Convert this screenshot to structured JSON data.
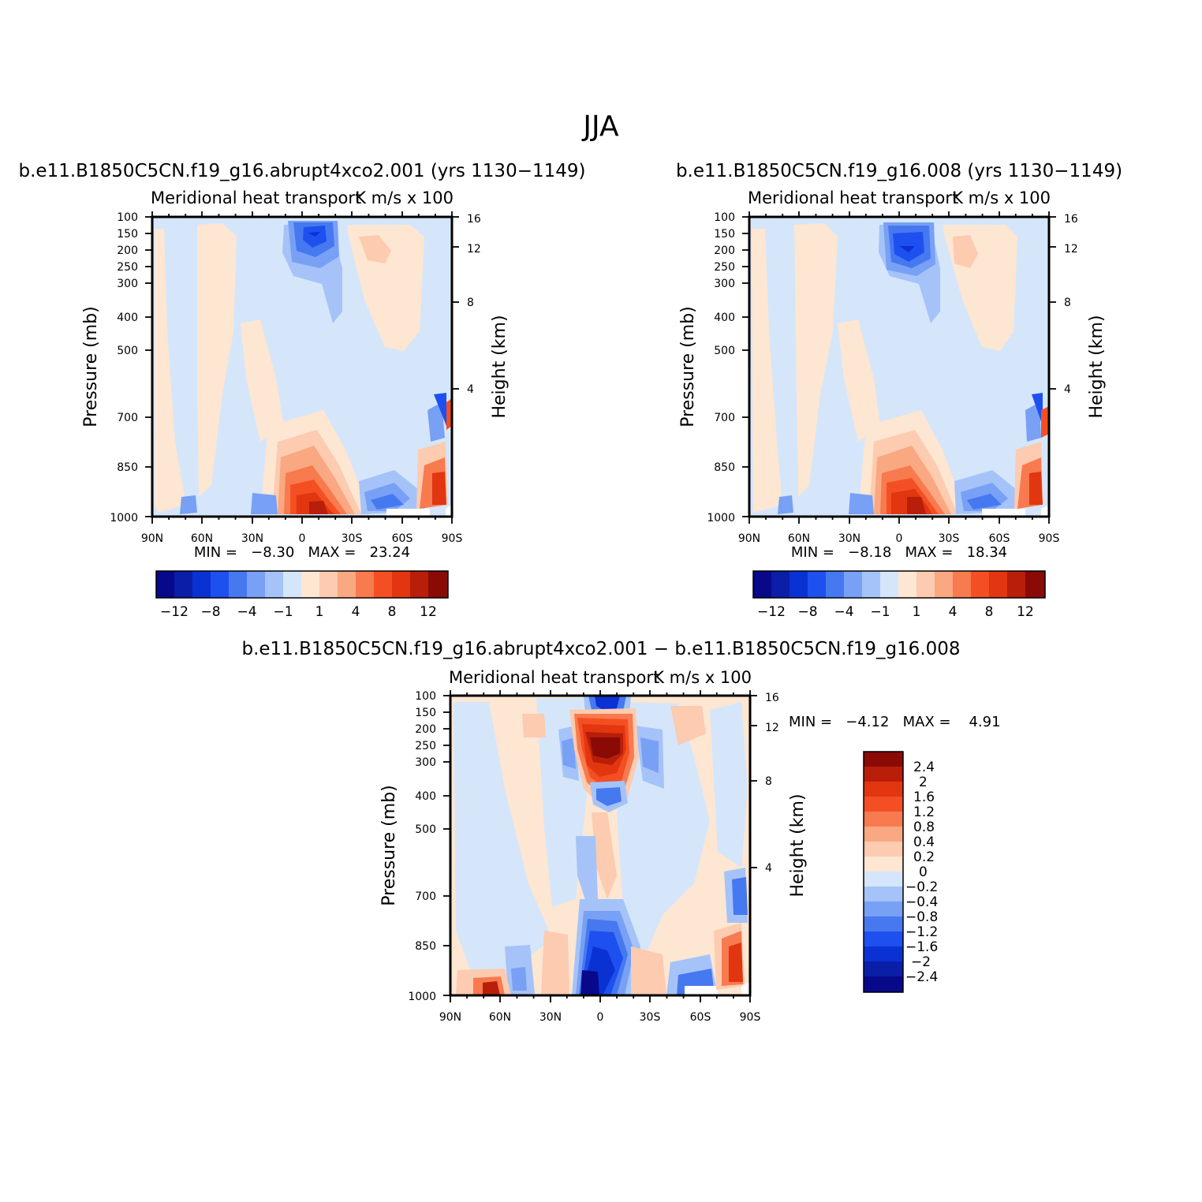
{
  "figure_title": "JJA",
  "colors": {
    "blues": [
      "#08088a",
      "#0a1ea8",
      "#0a32d2",
      "#1e50f0",
      "#4678f0",
      "#78a0f5",
      "#a5c3f8",
      "#d5e6fb"
    ],
    "reds": [
      "#fde6d2",
      "#fccbb0",
      "#f9a882",
      "#f87a4f",
      "#f44f23",
      "#e1360f",
      "#b81e0a",
      "#8a0a05"
    ]
  },
  "chart_data": [
    {
      "type": "contour",
      "title": "b.e11.B1850C5CN.f19_g16.abrupt4xco2.001 (yrs 1130−1149)",
      "left_subtitle": "Meridional heat transport",
      "right_subtitle": "K m/s x 100",
      "ylabel": "Pressure (mb)",
      "ylabel_right": "Height (km)",
      "x_ticks": [
        "90N",
        "60N",
        "30N",
        "0",
        "30S",
        "60S",
        "90S"
      ],
      "x_range": [
        90,
        -90
      ],
      "y_ticks": [
        "100",
        "150",
        "200",
        "250",
        "300",
        "400",
        "500",
        "700",
        "850",
        "1000"
      ],
      "y_right_ticks": [
        "16",
        "12",
        "8",
        "4"
      ],
      "stats": "MIN =   −8.30   MAX =   23.24",
      "min": -8.3,
      "max": 23.24,
      "colorbar": {
        "orientation": "horizontal",
        "labels": [
          "−12",
          "−8",
          "−4",
          "−1",
          "1",
          "4",
          "8",
          "12"
        ]
      },
      "features": [
        {
          "lat": 2,
          "p": 160,
          "value": -8.3
        },
        {
          "lat": 10,
          "p": 960,
          "value": 23.24
        },
        {
          "lat": -22,
          "p": 200,
          "value": 2
        },
        {
          "lat": -45,
          "p": 960,
          "value": -4
        },
        {
          "lat": -85,
          "p": 900,
          "value": 10
        }
      ]
    },
    {
      "type": "contour",
      "title": "b.e11.B1850C5CN.f19_g16.008 (yrs 1130−1149)",
      "left_subtitle": "Meridional heat transport",
      "right_subtitle": "K m/s x 100",
      "ylabel": "Pressure (mb)",
      "ylabel_right": "Height (km)",
      "x_ticks": [
        "90N",
        "60N",
        "30N",
        "0",
        "30S",
        "60S",
        "90S"
      ],
      "x_range": [
        90,
        -90
      ],
      "y_ticks": [
        "100",
        "150",
        "200",
        "250",
        "300",
        "400",
        "500",
        "700",
        "850",
        "1000"
      ],
      "y_right_ticks": [
        "16",
        "12",
        "8",
        "4"
      ],
      "stats": "MIN =   −8.18   MAX =   18.34",
      "min": -8.18,
      "max": 18.34,
      "colorbar": {
        "orientation": "horizontal",
        "labels": [
          "−12",
          "−8",
          "−4",
          "−1",
          "1",
          "4",
          "8",
          "12"
        ]
      },
      "features": [
        {
          "lat": 2,
          "p": 200,
          "value": -8.18
        },
        {
          "lat": 8,
          "p": 960,
          "value": 18.34
        },
        {
          "lat": -35,
          "p": 220,
          "value": 2
        },
        {
          "lat": -50,
          "p": 960,
          "value": -4
        },
        {
          "lat": -85,
          "p": 900,
          "value": 10
        }
      ]
    },
    {
      "type": "contour",
      "title": "b.e11.B1850C5CN.f19_g16.abrupt4xco2.001 − b.e11.B1850C5CN.f19_g16.008",
      "left_subtitle": "Meridional heat transport",
      "right_subtitle": "K m/s x 100",
      "ylabel": "Pressure (mb)",
      "ylabel_right": "Height (km)",
      "x_ticks": [
        "90N",
        "60N",
        "30N",
        "0",
        "30S",
        "60S",
        "90S"
      ],
      "x_range": [
        90,
        -90
      ],
      "y_ticks": [
        "100",
        "150",
        "200",
        "250",
        "300",
        "400",
        "500",
        "700",
        "850",
        "1000"
      ],
      "y_right_ticks": [
        "16",
        "12",
        "8",
        "4"
      ],
      "stats": "MIN =   −4.12   MAX =    4.91",
      "min": -4.12,
      "max": 4.91,
      "colorbar": {
        "orientation": "vertical",
        "labels": [
          "2.4",
          "2",
          "1.6",
          "1.2",
          "0.8",
          "0.4",
          "0.2",
          "0",
          "−0.2",
          "−0.4",
          "−0.8",
          "−1.2",
          "−1.6",
          "−2",
          "−2.4"
        ]
      },
      "features": [
        {
          "lat": 0,
          "p": 130,
          "value": -2.5
        },
        {
          "lat": -2,
          "p": 270,
          "value": 4.91
        },
        {
          "lat": -2,
          "p": 400,
          "value": -1.5
        },
        {
          "lat": 2,
          "p": 830,
          "value": -2.5
        },
        {
          "lat": 10,
          "p": 990,
          "value": -4.12
        },
        {
          "lat": 60,
          "p": 990,
          "value": 2.5
        },
        {
          "lat": -85,
          "p": 920,
          "value": 2.5
        },
        {
          "lat": -85,
          "p": 650,
          "value": -1.5
        }
      ]
    }
  ]
}
